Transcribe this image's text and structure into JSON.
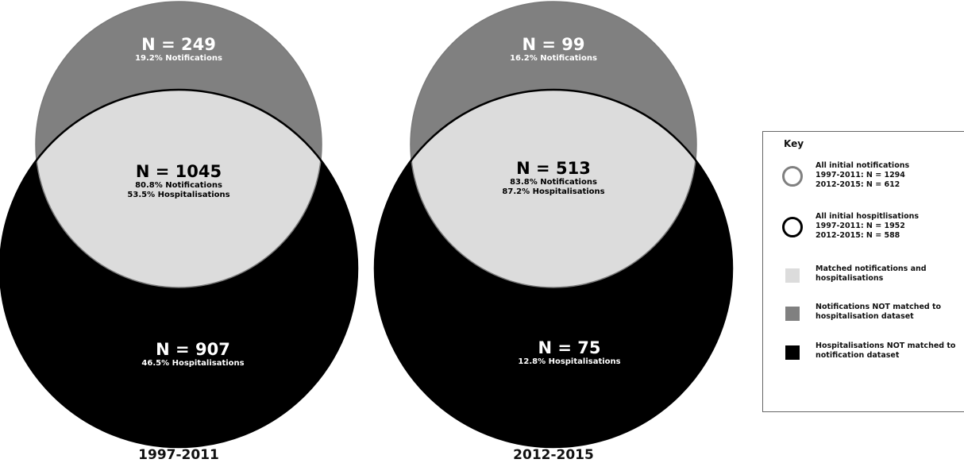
{
  "colors": {
    "notifications_only": "#808080",
    "matched": "#dcdcdc",
    "hospitalisations_only": "#000000"
  },
  "diagrams": [
    {
      "period": "1997-2011",
      "top": {
        "n": "N = 249",
        "pct": "19.2% Notifications"
      },
      "overlap": {
        "n": "N = 1045",
        "pct1": "80.8% Notifications",
        "pct2": "53.5%  Hospitalisations"
      },
      "bottom": {
        "n": "N = 907",
        "pct": "46.5% Hospitalisations"
      }
    },
    {
      "period": "2012-2015",
      "top": {
        "n": "N = 99",
        "pct": "16.2% Notifications"
      },
      "overlap": {
        "n": "N = 513",
        "pct1": "83.8% Notifications",
        "pct2": "87.2% Hospitalisations"
      },
      "bottom": {
        "n": "N = 75",
        "pct": "12.8% Hospitalisations"
      }
    }
  ],
  "key": {
    "title": "Key",
    "items": [
      {
        "icon": "grey-ring-icon",
        "lines": [
          "All initial notifications",
          "1997-2011: N = 1294",
          "2012-2015: N = 612"
        ]
      },
      {
        "icon": "black-ring-icon",
        "lines": [
          "All initial hospitlisations",
          "1997-2011: N = 1952",
          "2012-2015: N = 588"
        ]
      },
      {
        "icon": "light-grey-square-icon",
        "lines": [
          "Matched notifications and",
          "hospitalisations"
        ]
      },
      {
        "icon": "grey-square-icon",
        "lines": [
          "Notifications NOT matched to",
          "hospitalisation dataset"
        ]
      },
      {
        "icon": "black-square-icon",
        "lines": [
          "Hospitalisations NOT matched to",
          "notification dataset"
        ]
      }
    ]
  }
}
